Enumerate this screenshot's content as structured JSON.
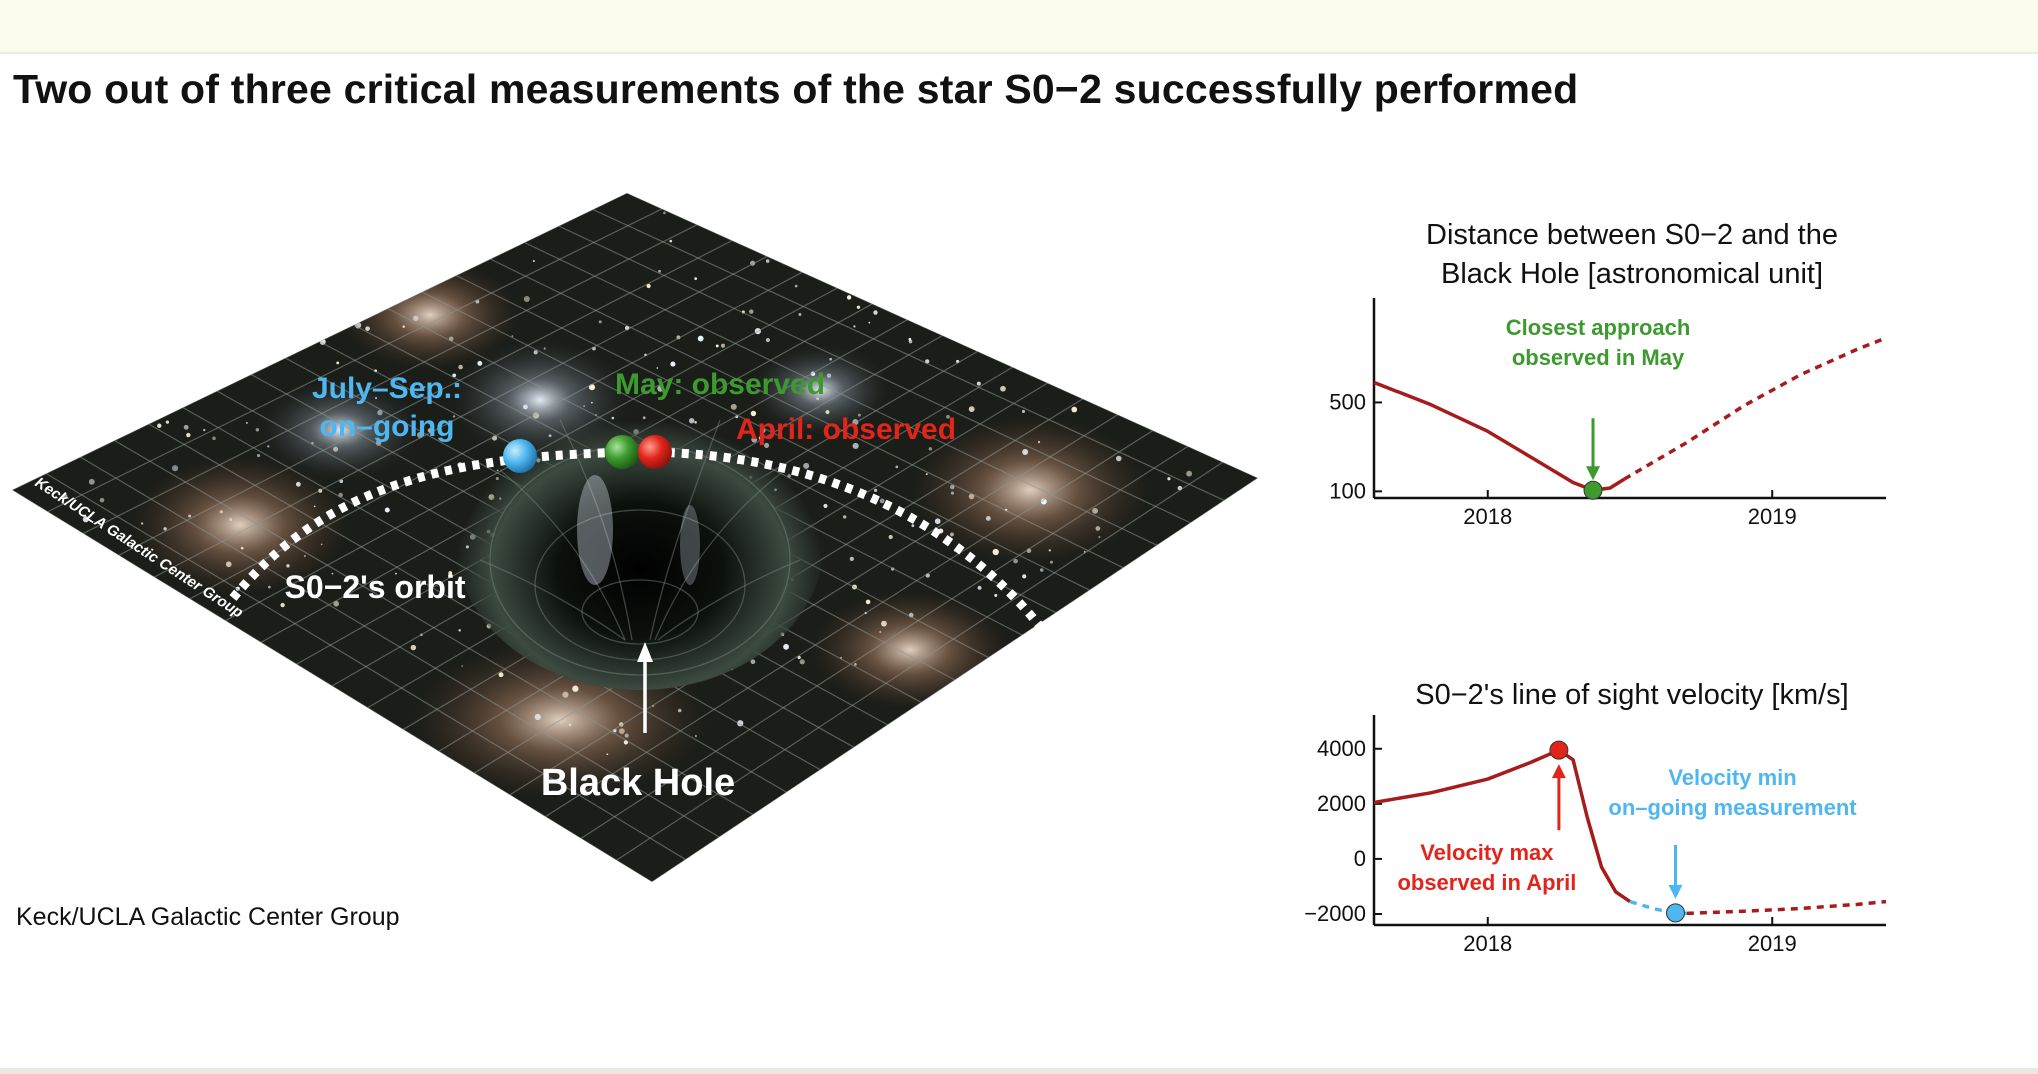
{
  "title": "Two out of three critical measurements of the star S0−2 successfully performed",
  "credit": "Keck/UCLA Galactic Center Group",
  "illustration": {
    "watermark": "Keck/UCLA Galactic Center Group",
    "labels": {
      "july_sep": [
        "July–Sep.:",
        "on–going"
      ],
      "may": "May: observed",
      "april": "April: observed",
      "orbit": "S0−2's orbit",
      "black_hole": "Black Hole"
    },
    "colors": {
      "july_sep": "#4fb7ef",
      "may": "#3d9a2e",
      "april": "#e1251b",
      "orbit": "#ffffff",
      "grid_bg": "#1a1d18"
    }
  },
  "chart_data": [
    {
      "type": "line",
      "title": [
        "Distance between S0−2 and the",
        "Black Hole [astronomical unit]"
      ],
      "xlabel": "",
      "ylabel": "",
      "x_ticks": [
        2018,
        2019
      ],
      "y_ticks": [
        100,
        500
      ],
      "xlim": [
        2017.6,
        2019.4
      ],
      "ylim": [
        70,
        880
      ],
      "series": [
        {
          "style": "solid",
          "color": "#a61c1c",
          "x": [
            2017.6,
            2017.8,
            2018.0,
            2018.15,
            2018.3,
            2018.37,
            2018.43,
            2018.48
          ],
          "y": [
            590,
            490,
            370,
            255,
            140,
            105,
            115,
            155
          ]
        },
        {
          "style": "dashed",
          "color": "#a61c1c",
          "x": [
            2018.48,
            2018.7,
            2018.9,
            2019.1,
            2019.3,
            2019.4
          ],
          "y": [
            155,
            320,
            485,
            625,
            740,
            790
          ]
        }
      ],
      "markers": [
        {
          "x": 2018.37,
          "y": 105,
          "color": "#3d9a2e"
        }
      ],
      "annotation": {
        "lines": [
          "Closest approach",
          "observed in May"
        ],
        "color": "#3d9a2e"
      }
    },
    {
      "type": "line",
      "title": [
        "S0−2's line of sight velocity [km/s]"
      ],
      "xlabel": "",
      "ylabel": "",
      "x_ticks": [
        2018,
        2019
      ],
      "y_ticks": [
        -2000,
        0,
        2000,
        4000
      ],
      "xlim": [
        2017.6,
        2019.4
      ],
      "ylim": [
        -2400,
        4500
      ],
      "series": [
        {
          "style": "solid",
          "color": "#a61c1c",
          "x": [
            2017.6,
            2017.8,
            2018.0,
            2018.15,
            2018.25,
            2018.3,
            2018.35,
            2018.4,
            2018.45,
            2018.5
          ],
          "y": [
            2050,
            2400,
            2900,
            3500,
            3950,
            3600,
            1500,
            -300,
            -1200,
            -1550
          ]
        },
        {
          "style": "dashed",
          "color": "#4fb7ef",
          "x": [
            2018.5,
            2018.58,
            2018.65,
            2018.7
          ],
          "y": [
            -1550,
            -1800,
            -1960,
            -1980
          ]
        },
        {
          "style": "dashed",
          "color": "#a61c1c",
          "x": [
            2018.7,
            2018.9,
            2019.1,
            2019.3,
            2019.4
          ],
          "y": [
            -1980,
            -1900,
            -1800,
            -1650,
            -1550
          ]
        }
      ],
      "markers": [
        {
          "x": 2018.25,
          "y": 3950,
          "color": "#e1251b"
        },
        {
          "x": 2018.66,
          "y": -1960,
          "color": "#4fb7ef"
        }
      ],
      "annotations": [
        {
          "lines": [
            "Velocity max",
            "observed in April"
          ],
          "color": "#e1251b"
        },
        {
          "lines": [
            "Velocity min",
            "on–going measurement"
          ],
          "color": "#4fb7ef"
        }
      ]
    }
  ]
}
